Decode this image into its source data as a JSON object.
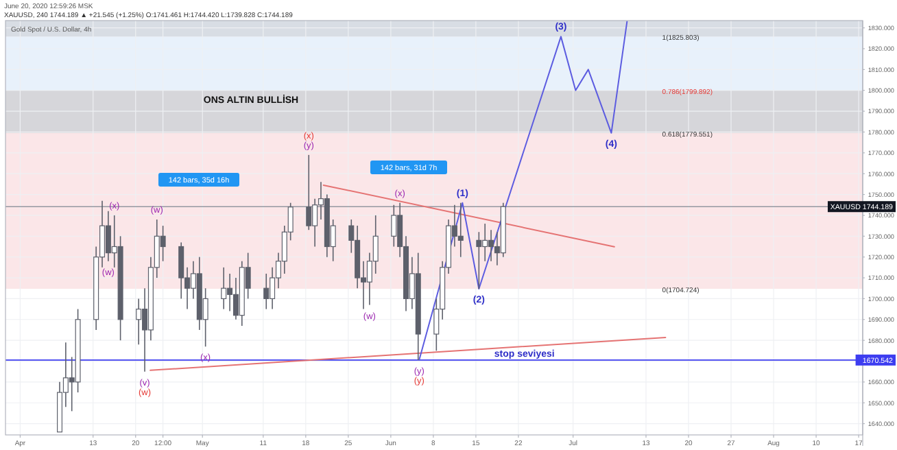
{
  "chart_data": {
    "type": "candlestick",
    "title": "ONS ALTIN  BULLİSH",
    "color": "#5d606b",
    "x": [
      "2020-04-07T12:00",
      "2020-04-08T12:00",
      "2020-04-09T12:00",
      "2020-04-10T12:00",
      "2020-04-13T12:00",
      "2020-04-14T12:00",
      "2020-04-15T12:00",
      "2020-04-16T12:00",
      "2020-04-17T12:00",
      "2020-04-20T12:00",
      "2020-04-21T12:00",
      "2020-04-22T12:00",
      "2020-04-23T12:00",
      "2020-04-24T12:00",
      "2020-04-27T12:00",
      "2020-04-28T12:00",
      "2020-04-29T12:00",
      "2020-04-30T12:00",
      "2020-05-01T12:00",
      "2020-05-04T12:00",
      "2020-05-05T12:00",
      "2020-05-06T12:00",
      "2020-05-07T12:00",
      "2020-05-08T12:00",
      "2020-05-11T12:00",
      "2020-05-12T12:00",
      "2020-05-13T12:00",
      "2020-05-14T12:00",
      "2020-05-15T12:00",
      "2020-05-18T12:00",
      "2020-05-19T12:00",
      "2020-05-20T12:00",
      "2020-05-21T12:00",
      "2020-05-22T12:00",
      "2020-05-25T12:00",
      "2020-05-26T12:00",
      "2020-05-27T12:00",
      "2020-05-28T12:00",
      "2020-05-29T12:00",
      "2020-06-01T12:00",
      "2020-06-02T12:00",
      "2020-06-03T12:00",
      "2020-06-04T12:00",
      "2020-06-05T12:00",
      "2020-06-08T12:00",
      "2020-06-09T12:00",
      "2020-06-10T12:00",
      "2020-06-11T12:00",
      "2020-06-12T12:00",
      "2020-06-15T12:00",
      "2020-06-16T12:00",
      "2020-06-17T12:00",
      "2020-06-18T12:00",
      "2020-06-19T12:00"
    ],
    "ohlc": [
      [
        1636,
        1660,
        1636,
        1655
      ],
      [
        1655,
        1679,
        1648,
        1662
      ],
      [
        1662,
        1672,
        1646,
        1660
      ],
      [
        1660,
        1695,
        1655,
        1690
      ],
      [
        1690,
        1725,
        1685,
        1720
      ],
      [
        1720,
        1747,
        1715,
        1735
      ],
      [
        1735,
        1742,
        1718,
        1722
      ],
      [
        1722,
        1740,
        1715,
        1725
      ],
      [
        1725,
        1730,
        1680,
        1690
      ],
      [
        1690,
        1700,
        1678,
        1695
      ],
      [
        1695,
        1705,
        1665,
        1685
      ],
      [
        1685,
        1720,
        1680,
        1715
      ],
      [
        1715,
        1738,
        1710,
        1730
      ],
      [
        1730,
        1735,
        1718,
        1725
      ],
      [
        1725,
        1727,
        1700,
        1710
      ],
      [
        1710,
        1715,
        1695,
        1705
      ],
      [
        1705,
        1718,
        1700,
        1712
      ],
      [
        1712,
        1720,
        1685,
        1690
      ],
      [
        1690,
        1705,
        1677,
        1700
      ],
      [
        1700,
        1715,
        1695,
        1705
      ],
      [
        1705,
        1712,
        1694,
        1702
      ],
      [
        1702,
        1710,
        1690,
        1692
      ],
      [
        1692,
        1718,
        1687,
        1715
      ],
      [
        1715,
        1722,
        1700,
        1705
      ],
      [
        1705,
        1712,
        1695,
        1700
      ],
      [
        1700,
        1715,
        1695,
        1710
      ],
      [
        1710,
        1722,
        1705,
        1718
      ],
      [
        1718,
        1735,
        1712,
        1732
      ],
      [
        1732,
        1746,
        1728,
        1744
      ],
      [
        1744,
        1769,
        1733,
        1735
      ],
      [
        1735,
        1748,
        1725,
        1745
      ],
      [
        1745,
        1756,
        1738,
        1748
      ],
      [
        1748,
        1750,
        1720,
        1725
      ],
      [
        1725,
        1738,
        1718,
        1735
      ],
      [
        1735,
        1738,
        1722,
        1728
      ],
      [
        1728,
        1735,
        1705,
        1710
      ],
      [
        1710,
        1718,
        1695,
        1708
      ],
      [
        1708,
        1722,
        1697,
        1718
      ],
      [
        1718,
        1740,
        1712,
        1730
      ],
      [
        1730,
        1745,
        1725,
        1740
      ],
      [
        1740,
        1746,
        1720,
        1725
      ],
      [
        1725,
        1730,
        1694,
        1700
      ],
      [
        1700,
        1720,
        1695,
        1712
      ],
      [
        1712,
        1722,
        1670.5,
        1683
      ],
      [
        1683,
        1700,
        1675,
        1695
      ],
      [
        1695,
        1718,
        1690,
        1715
      ],
      [
        1715,
        1738,
        1712,
        1735
      ],
      [
        1735,
        1745,
        1725,
        1730
      ],
      [
        1730,
        1746,
        1720,
        1728
      ],
      [
        1728,
        1732,
        1704.7,
        1725
      ],
      [
        1725,
        1736,
        1718,
        1728
      ],
      [
        1728,
        1733,
        1718,
        1725
      ],
      [
        1725,
        1732,
        1716,
        1722
      ],
      [
        1722,
        1746,
        1720,
        1744.189
      ]
    ],
    "series": [
      {
        "type": "line",
        "color": "#e57373",
        "x": [
          "2020-05-20T22:00",
          "2020-07-07T19:00"
        ],
        "values": [
          1754.5,
          1724.9
        ]
      },
      {
        "type": "line",
        "color": "#e57373",
        "x": [
          "2020-04-22T10:00",
          "2020-07-16T05:00"
        ],
        "values": [
          1665.6,
          1681.4
        ]
      },
      {
        "type": "line",
        "color": "#5c5ce0",
        "x": [
          "2020-06-05T16:00",
          "2020-06-12T19:00",
          "2020-06-15T12:00",
          "2020-06-29T00:00",
          "2020-07-01T10:00",
          "2020-07-03T12:00",
          "2020-07-07T07:00",
          "2020-07-09T21:00"
        ],
        "values": [
          1670.542,
          1746,
          1704.724,
          1825.803,
          1800,
          1810,
          1779.551,
          1833
        ]
      }
    ],
    "bands": [
      {
        "axis": "y",
        "from": 1704.724,
        "to": 1779.551,
        "color": "#fbe6e8"
      },
      {
        "axis": "y",
        "from": 1779.551,
        "to": 1799.892,
        "color": "#d6d6da"
      },
      {
        "axis": "y",
        "from": 1799.892,
        "to": 1825.803,
        "color": "#e8f1fb"
      },
      {
        "axis": "y",
        "from": 1825.803,
        "to": 1833.5,
        "color": "#d8dde4"
      }
    ],
    "ref_lines": [
      {
        "axis": "y",
        "value": 1744.189,
        "label": "XAUUSD 1744.189",
        "color": "#9598a1"
      },
      {
        "axis": "y",
        "value": 1670.542,
        "label": "1670.542",
        "color": "#3d3df0"
      }
    ],
    "annotations": [
      "June 20, 2020 12:59:26 MSK",
      "XAUUSD, 240  1744.189 ▲ +21.545 (+1.25%) O:1741.461 H:1744.420 L:1739.828 C:1744.189",
      "Gold Spot / U.S. Dollar, 4h",
      {
        "text": "(x)",
        "x": "2020-04-16T12:00",
        "y": 1740
      },
      {
        "text": "(w)",
        "x": "2020-04-15T12:00",
        "y": 1718
      },
      {
        "text": "(w)",
        "x": "2020-04-23T12:00",
        "y": 1738
      },
      {
        "text": "(v)",
        "x": "2020-04-21T12:00",
        "y": 1665
      },
      {
        "text": "(w)",
        "x": "2020-04-21T12:00",
        "y": 1665
      },
      {
        "text": "(x)",
        "x": "2020-05-01T12:00",
        "y": 1677
      },
      {
        "text": "(y)",
        "x": "2020-05-18T12:00",
        "y": 1769
      },
      {
        "text": "(x)",
        "x": "2020-05-18T12:00",
        "y": 1769
      },
      {
        "text": "(w)",
        "x": "2020-05-28T12:00",
        "y": 1697
      },
      {
        "text": "(x)",
        "x": "2020-06-02T12:00",
        "y": 1746
      },
      {
        "text": "(y)",
        "x": "2020-06-05T16:00",
        "y": 1670.542
      },
      {
        "text": "(y)",
        "x": "2020-06-05T16:00",
        "y": 1670.542
      },
      {
        "text": "(1)",
        "x": "2020-06-12T19:00",
        "y": 1746
      },
      {
        "text": "(2)",
        "x": "2020-06-15T12:00",
        "y": 1704.724
      },
      {
        "text": "(3)",
        "x": "2020-06-29T00:00",
        "y": 1825.803
      },
      {
        "text": "(4)",
        "x": "2020-07-07T07:00",
        "y": 1779.551
      },
      {
        "text": "stop seviyesi",
        "x": "2020-06-23T00:00",
        "y": 1670.542
      },
      "142 bars, 35d 16h",
      "142 bars, 31d 7h",
      {
        "text": "1(1825.803)",
        "x": "2020-07-15T16:00",
        "y": 1825.803
      },
      {
        "text": "0.786(1799.892)",
        "x": "2020-07-15T16:00",
        "y": 1799.892
      },
      {
        "text": "0.618(1779.551)",
        "x": "2020-07-15T16:00",
        "y": 1779.551
      },
      {
        "text": "0(1704.724)",
        "x": "2020-07-15T16:00",
        "y": 1704.724
      }
    ],
    "xlim": [
      "2020-03-29T14:00",
      "2020-08-17T16:00"
    ],
    "xticks": [
      {
        "value": "2020-04-01",
        "label": "Apr"
      },
      {
        "value": "2020-04-13",
        "label": "13"
      },
      {
        "value": "2020-04-20",
        "label": "20"
      },
      {
        "value": "2020-04-24T12:00",
        "label": "12:00"
      },
      {
        "value": "2020-05-01",
        "label": "May"
      },
      {
        "value": "2020-05-11",
        "label": "11"
      },
      {
        "value": "2020-05-18",
        "label": "18"
      },
      {
        "value": "2020-05-25",
        "label": "25"
      },
      {
        "value": "2020-06-01",
        "label": "Jun"
      },
      {
        "value": "2020-06-08",
        "label": "8"
      },
      {
        "value": "2020-06-15",
        "label": "15"
      },
      {
        "value": "2020-06-22",
        "label": "22"
      },
      {
        "value": "2020-07-01",
        "label": "Jul"
      },
      {
        "value": "2020-07-13",
        "label": "13"
      },
      {
        "value": "2020-07-20",
        "label": "20"
      },
      {
        "value": "2020-07-27",
        "label": "27"
      },
      {
        "value": "2020-08-03",
        "label": "Aug"
      },
      {
        "value": "2020-08-10",
        "label": "10"
      },
      {
        "value": "2020-08-17",
        "label": "17"
      }
    ],
    "ylim": [
      1634.6,
      1833.5
    ],
    "yticks": [
      {
        "value": 1640,
        "label": "1640.000"
      },
      {
        "value": 1650,
        "label": "1650.000"
      },
      {
        "value": 1660,
        "label": "1660.000"
      },
      {
        "value": 1670,
        "label": null
      },
      {
        "value": 1680,
        "label": "1680.000"
      },
      {
        "value": 1690,
        "label": "1690.000"
      },
      {
        "value": 1700,
        "label": "1700.000"
      },
      {
        "value": 1710,
        "label": "1710.000"
      },
      {
        "value": 1720,
        "label": "1720.000"
      },
      {
        "value": 1730,
        "label": "1730.000"
      },
      {
        "value": 1740,
        "label": "1740.000"
      },
      {
        "value": 1750,
        "label": "1750.000"
      },
      {
        "value": 1760,
        "label": "1760.000"
      },
      {
        "value": 1770,
        "label": "1770.000"
      },
      {
        "value": 1780,
        "label": "1780.000"
      },
      {
        "value": 1790,
        "label": "1790.000"
      },
      {
        "value": 1800,
        "label": "1800.000"
      },
      {
        "value": 1810,
        "label": "1810.000"
      },
      {
        "value": 1820,
        "label": "1820.000"
      },
      {
        "value": 1830,
        "label": "1830.000"
      }
    ],
    "grid": true
  }
}
